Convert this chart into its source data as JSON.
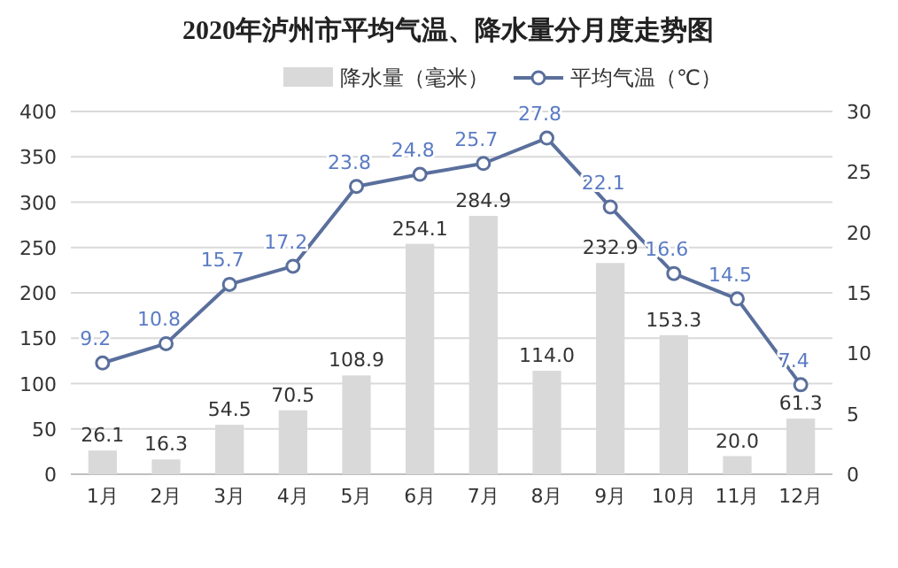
{
  "chart_data": {
    "type": "bar",
    "title": "2020年泸州市平均气温、降水量分月度走势图",
    "categories": [
      "1月",
      "2月",
      "3月",
      "4月",
      "5月",
      "6月",
      "7月",
      "8月",
      "9月",
      "10月",
      "11月",
      "12月"
    ],
    "series": [
      {
        "name": "降水量（毫米）",
        "color": "#d9d9d9",
        "values": [
          26.1,
          16.3,
          54.5,
          70.5,
          108.9,
          254.1,
          284.9,
          114.0,
          232.9,
          153.3,
          20.0,
          61.3
        ],
        "value_labels": [
          "26.1",
          "16.3",
          "54.5",
          "70.5",
          "108.9",
          "254.1",
          "284.9",
          "114.0",
          "232.9",
          "153.3",
          "20.0",
          "61.3"
        ]
      },
      {
        "name": "平均气温（℃）",
        "type": "line",
        "axis": "y2",
        "color": "#5a6f9c",
        "marker": "circle",
        "values": [
          9.2,
          10.8,
          15.7,
          17.2,
          23.8,
          24.8,
          25.7,
          27.8,
          22.1,
          16.6,
          14.5,
          7.4
        ]
      }
    ],
    "ylim": [
      0,
      400
    ],
    "yticks": [
      0,
      50,
      100,
      150,
      200,
      250,
      300,
      350,
      400
    ],
    "y2lim": [
      0,
      30
    ],
    "y2ticks": [
      0,
      5,
      10,
      15,
      20,
      25,
      30
    ],
    "grid": "y",
    "legend": "top",
    "data_labels": true
  }
}
